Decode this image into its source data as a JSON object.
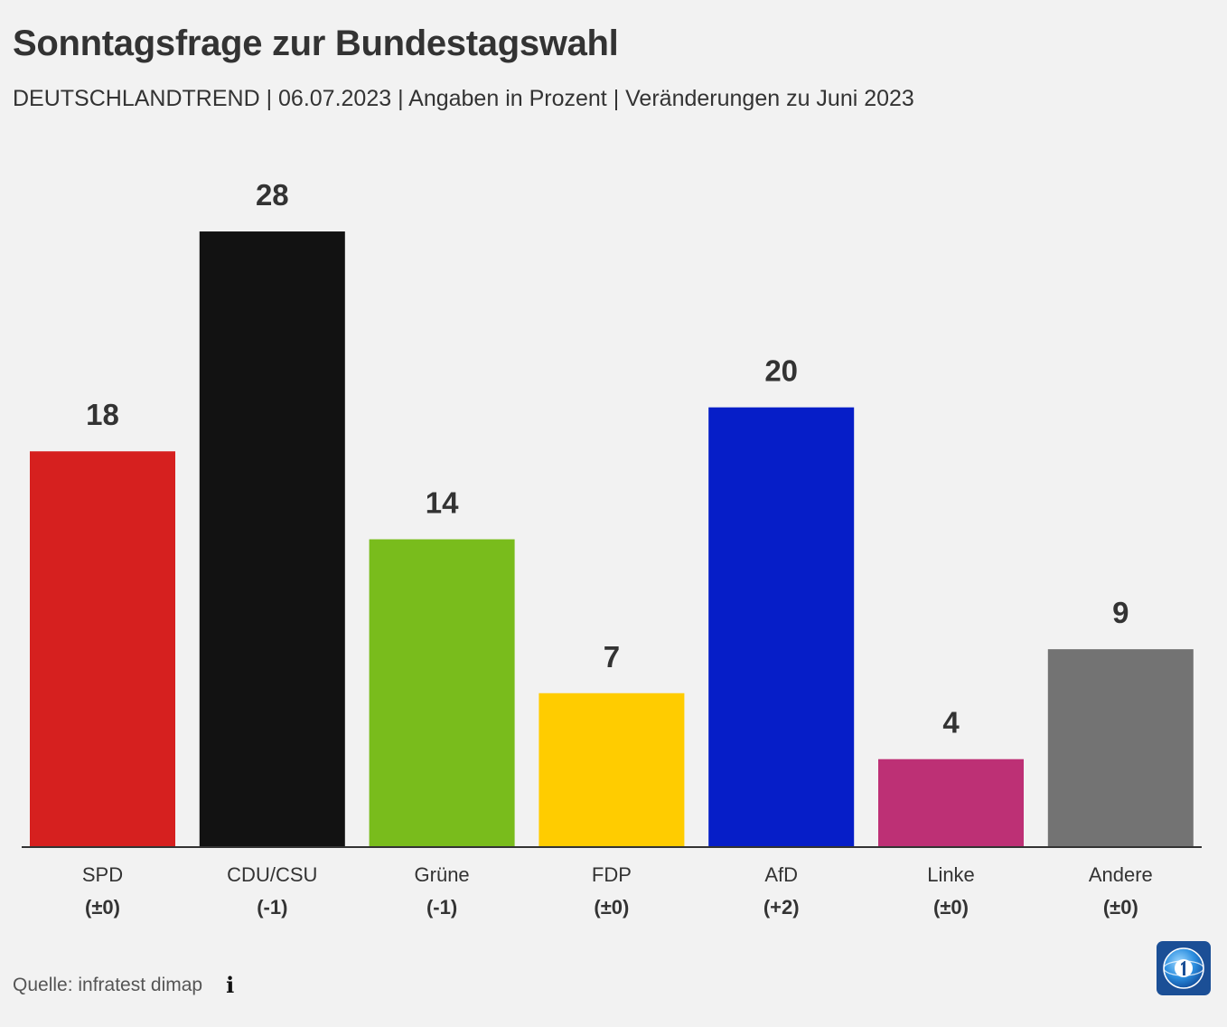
{
  "header": {
    "title": "Sonntagsfrage zur Bundestagswahl",
    "subtitle": "DEUTSCHLANDTREND | 06.07.2023 | Angaben in Prozent | Veränderungen zu Juni 2023"
  },
  "footer": {
    "source": "Quelle: infratest dimap",
    "info_icon": "info-icon",
    "logo_icon": "tagesschau-logo-icon"
  },
  "chart_data": {
    "type": "bar",
    "categories": [
      "SPD",
      "CDU/CSU",
      "Grüne",
      "FDP",
      "AfD",
      "Linke",
      "Andere"
    ],
    "values": [
      18,
      28,
      14,
      7,
      20,
      4,
      9
    ],
    "changes": [
      "(±0)",
      "(-1)",
      "(-1)",
      "(±0)",
      "(+2)",
      "(±0)",
      "(±0)"
    ],
    "colors": [
      "#d6201f",
      "#121212",
      "#79bc1c",
      "#ffcc00",
      "#061ec8",
      "#bd3075",
      "#737373"
    ],
    "title": "Sonntagsfrage zur Bundestagswahl",
    "xlabel": "",
    "ylabel": "",
    "ylim": [
      0,
      28
    ],
    "grid": false,
    "legend": "none"
  }
}
